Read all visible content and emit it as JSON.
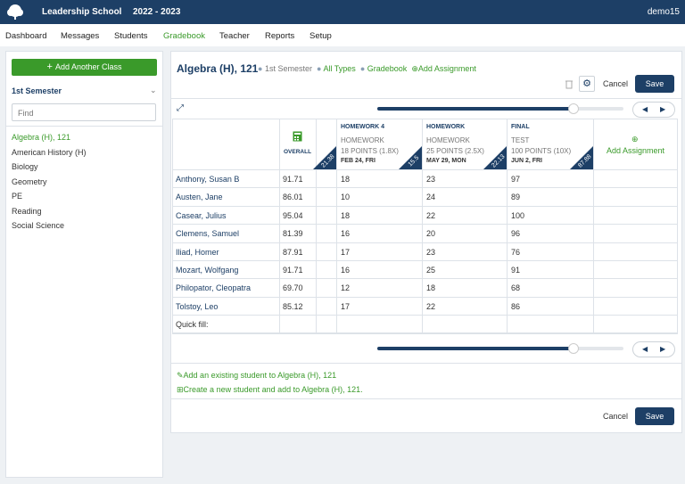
{
  "header": {
    "school": "Leadership School",
    "year": "2022 - 2023",
    "user": "demo15"
  },
  "nav": {
    "items": [
      "Dashboard",
      "Messages",
      "Students",
      "Gradebook",
      "Teacher",
      "Reports",
      "Setup"
    ],
    "active": 3
  },
  "sidebar": {
    "add_button": "Add Another Class",
    "semester": "1st Semester",
    "search_placeholder": "Find",
    "classes": [
      "Algebra (H), 121",
      "American History (H)",
      "Biology",
      "Geometry",
      "PE",
      "Reading",
      "Social Science"
    ],
    "selected": 0
  },
  "main": {
    "title": "Algebra (H), 121",
    "breadcrumbs": [
      "1st Semester",
      "All Types",
      "Gradebook"
    ],
    "add_assignment": "Add Assignment",
    "cancel": "Cancel",
    "save": "Save"
  },
  "table": {
    "overall_label": "OVERALL",
    "overall_average": "21.38",
    "assignments": [
      {
        "title": "HOMEWORK 4",
        "type": "HOMEWORK",
        "points": "18 POINTS (1.8X)",
        "date": "FEB 24, FRI",
        "average": "15.5"
      },
      {
        "title": "HOMEWORK",
        "type": "HOMEWORK",
        "points": "25 POINTS (2.5X)",
        "date": "MAY 29, MON",
        "average": "22.13"
      },
      {
        "title": "FINAL",
        "type": "TEST",
        "points": "100 POINTS (10X)",
        "date": "JUN 2, FRI",
        "average": "87.88"
      }
    ],
    "add_assignment": "Add Assignment",
    "rows": [
      {
        "name": "Anthony, Susan B",
        "overall": "91.71",
        "scores": [
          "18",
          "23",
          "97"
        ]
      },
      {
        "name": "Austen, Jane",
        "overall": "86.01",
        "scores": [
          "10",
          "24",
          "89"
        ]
      },
      {
        "name": "Casear, Julius",
        "overall": "95.04",
        "scores": [
          "18",
          "22",
          "100"
        ]
      },
      {
        "name": "Clemens, Samuel",
        "overall": "81.39",
        "scores": [
          "16",
          "20",
          "96"
        ]
      },
      {
        "name": "Iliad, Homer",
        "overall": "87.91",
        "scores": [
          "17",
          "23",
          "76"
        ]
      },
      {
        "name": "Mozart, Wolfgang",
        "overall": "91.71",
        "scores": [
          "16",
          "25",
          "91"
        ]
      },
      {
        "name": "Philopator, Cleopatra",
        "overall": "69.70",
        "scores": [
          "12",
          "18",
          "68"
        ]
      },
      {
        "name": "Tolstoy, Leo",
        "overall": "85.12",
        "scores": [
          "17",
          "22",
          "86"
        ]
      }
    ],
    "quick_fill": "Quick fill:"
  },
  "footer": {
    "add_existing": "Add an existing student to Algebra (H), 121",
    "create_new": "Create a new student and add to Algebra (H), 121.",
    "cancel": "Cancel",
    "save": "Save"
  }
}
